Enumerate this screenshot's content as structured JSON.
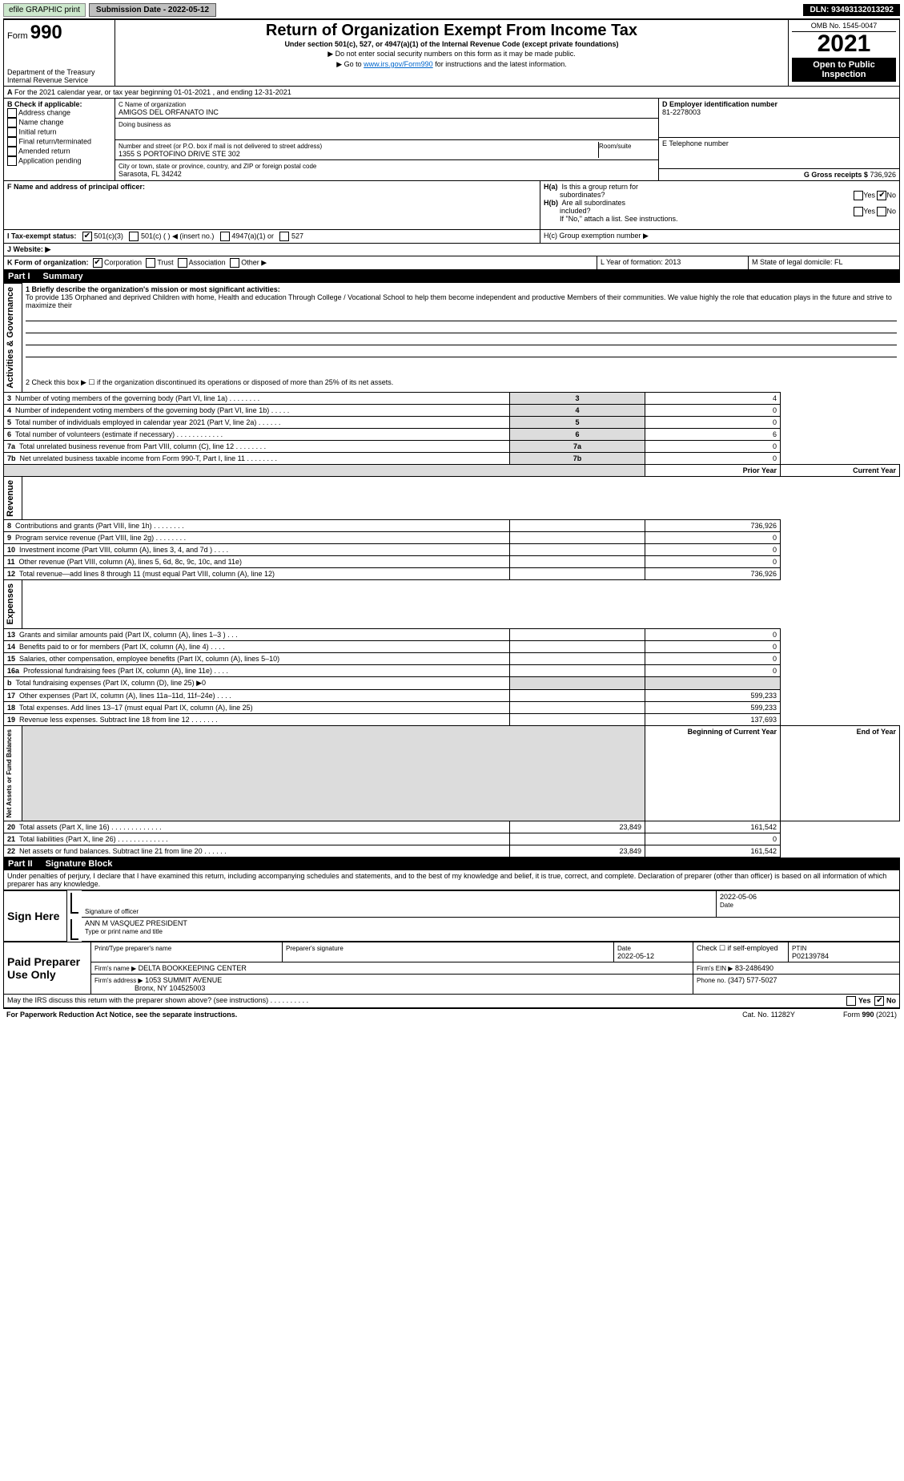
{
  "topbar": {
    "efile": "efile GRAPHIC print",
    "subdate_lbl": "Submission Date - 2022-05-12",
    "dln": "DLN: 93493132013292"
  },
  "header": {
    "form": "990",
    "title": "Return of Organization Exempt From Income Tax",
    "sub": "Under section 501(c), 527, or 4947(a)(1) of the Internal Revenue Code (except private foundations)",
    "note1": "▶ Do not enter social security numbers on this form as it may be made public.",
    "note2_pre": "▶ Go to ",
    "note2_link": "www.irs.gov/Form990",
    "note2_post": " for instructions and the latest information.",
    "dept": "Department of the Treasury",
    "irs": "Internal Revenue Service",
    "omb": "OMB No. 1545-0047",
    "year": "2021",
    "inspect": "Open to Public Inspection"
  },
  "A": {
    "txt": "For the 2021 calendar year, or tax year beginning 01-01-2021    , and ending 12-31-2021"
  },
  "B": {
    "lbl": "B Check if applicable:",
    "items": [
      "Address change",
      "Name change",
      "Initial return",
      "Final return/terminated",
      "Amended return",
      "Application pending"
    ]
  },
  "C": {
    "lbl": "C Name of organization",
    "name": "AMIGOS DEL ORFANATO INC",
    "dba_lbl": "Doing business as",
    "addr_lbl": "Number and street (or P.O. box if mail is not delivered to street address)",
    "room_lbl": "Room/suite",
    "addr": "1355 S PORTOFINO DRIVE STE 302",
    "city_lbl": "City or town, state or province, country, and ZIP or foreign postal code",
    "city": "Sarasota, FL  34242"
  },
  "D": {
    "lbl": "D Employer identification number",
    "val": "81-2278003"
  },
  "E": {
    "lbl": "E Telephone number"
  },
  "G": {
    "lbl": "G Gross receipts $",
    "val": "736,926"
  },
  "F": {
    "lbl": "F  Name and address of principal officer:"
  },
  "H": {
    "a": "H(a)  Is this a group return for subordinates?",
    "b": "H(b)  Are all subordinates included?",
    "bnote": "If \"No,\" attach a list. See instructions.",
    "c": "H(c)  Group exemption number ▶",
    "yes": "Yes",
    "no": "No"
  },
  "I": {
    "lbl": "I    Tax-exempt status:",
    "opts": [
      "501(c)(3)",
      "501(c) (  ) ◀ (insert no.)",
      "4947(a)(1) or",
      "527"
    ]
  },
  "J": {
    "lbl": "J    Website: ▶"
  },
  "K": {
    "lbl": "K Form of organization:",
    "opts": [
      "Corporation",
      "Trust",
      "Association",
      "Other ▶"
    ]
  },
  "L": {
    "lbl": "L Year of formation: 2013"
  },
  "M": {
    "lbl": "M State of legal domicile: FL"
  },
  "part1": {
    "hdr": "Part I",
    "title": "Summary",
    "l1": "1  Briefly describe the organization's mission or most significant activities:",
    "mission": "To provide 135 Orphaned and deprived Children with home, Health and education Through College / Vocational School to help them become independent and productive Members of their communities. We value highly the role that education plays in the future and strive to maximize their",
    "l2": "2   Check this box ▶ ☐  if the organization discontinued its operations or disposed of more than 25% of its net assets.",
    "rows_ag": [
      {
        "n": "3",
        "t": "Number of voting members of the governing body (Part VI, line 1a)   .    .    .    .    .    .    .    .",
        "v": "4"
      },
      {
        "n": "4",
        "t": "Number of independent voting members of the governing body (Part VI, line 1b)   .    .    .    .    .",
        "v": "0"
      },
      {
        "n": "5",
        "t": "Total number of individuals employed in calendar year 2021 (Part V, line 2a)   .    .    .    .    .    .",
        "v": "0"
      },
      {
        "n": "6",
        "t": "Total number of volunteers (estimate if necessary)    .    .    .    .    .    .    .    .    .    .    .    .",
        "v": "6"
      },
      {
        "n": "7a",
        "t": "Total unrelated business revenue from Part VIII, column (C), line 12   .    .    .    .    .    .    .    .",
        "v": "0"
      },
      {
        "n": "7b",
        "t": "Net unrelated business taxable income from Form 990-T, Part I, line 11   .    .    .    .    .    .    .    .",
        "v": "0"
      }
    ],
    "prior_hdr": "Prior Year",
    "cur_hdr": "Current Year",
    "rows_rev": [
      {
        "n": "8",
        "t": "Contributions and grants (Part VIII, line 1h)   .    .    .    .    .    .    .    .",
        "p": "",
        "c": "736,926"
      },
      {
        "n": "9",
        "t": "Program service revenue (Part VIII, line 2g)   .    .    .    .    .    .    .    .",
        "p": "",
        "c": "0"
      },
      {
        "n": "10",
        "t": "Investment income (Part VIII, column (A), lines 3, 4, and 7d )   .    .    .    .",
        "p": "",
        "c": "0"
      },
      {
        "n": "11",
        "t": "Other revenue (Part VIII, column (A), lines 5, 6d, 8c, 9c, 10c, and 11e)",
        "p": "",
        "c": "0"
      },
      {
        "n": "12",
        "t": "Total revenue—add lines 8 through 11 (must equal Part VIII, column (A), line 12)",
        "p": "",
        "c": "736,926"
      }
    ],
    "rows_exp": [
      {
        "n": "13",
        "t": "Grants and similar amounts paid (Part IX, column (A), lines 1–3 )   .    .    .",
        "p": "",
        "c": "0"
      },
      {
        "n": "14",
        "t": "Benefits paid to or for members (Part IX, column (A), line 4)   .    .    .    .",
        "p": "",
        "c": "0"
      },
      {
        "n": "15",
        "t": "Salaries, other compensation, employee benefits (Part IX, column (A), lines 5–10)",
        "p": "",
        "c": "0"
      },
      {
        "n": "16a",
        "t": "Professional fundraising fees (Part IX, column (A), line 11e)   .    .    .    .",
        "p": "",
        "c": "0"
      },
      {
        "n": "b",
        "t": "Total fundraising expenses (Part IX, column (D), line 25) ▶0",
        "p": "—",
        "c": "—"
      },
      {
        "n": "17",
        "t": "Other expenses (Part IX, column (A), lines 11a–11d, 11f–24e)   .    .    .    .",
        "p": "",
        "c": "599,233"
      },
      {
        "n": "18",
        "t": "Total expenses. Add lines 13–17 (must equal Part IX, column (A), line 25)",
        "p": "",
        "c": "599,233"
      },
      {
        "n": "19",
        "t": "Revenue less expenses. Subtract line 18 from line 12   .    .    .    .    .    .    .",
        "p": "",
        "c": "137,693"
      }
    ],
    "beg_hdr": "Beginning of Current Year",
    "end_hdr": "End of Year",
    "rows_na": [
      {
        "n": "20",
        "t": "Total assets (Part X, line 16)   .    .    .    .    .    .    .    .    .    .    .    .    .",
        "p": "23,849",
        "c": "161,542"
      },
      {
        "n": "21",
        "t": "Total liabilities (Part X, line 26)   .    .    .    .    .    .    .    .    .    .    .    .    .",
        "p": "",
        "c": "0"
      },
      {
        "n": "22",
        "t": "Net assets or fund balances. Subtract line 21 from line 20   .    .    .    .    .    .",
        "p": "23,849",
        "c": "161,542"
      }
    ],
    "sec_labels": {
      "ag": "Activities & Governance",
      "rev": "Revenue",
      "exp": "Expenses",
      "na": "Net Assets or Fund Balances"
    }
  },
  "part2": {
    "hdr": "Part II",
    "title": "Signature Block",
    "decl": "Under penalties of perjury, I declare that I have examined this return, including accompanying schedules and statements, and to the best of my knowledge and belief, it is true, correct, and complete. Declaration of preparer (other than officer) is based on all information of which preparer has any knowledge.",
    "sign_here": "Sign Here",
    "sig_officer": "Signature of officer",
    "date_lbl": "Date",
    "sig_date": "2022-05-06",
    "name_title": "ANN M VASQUEZ  PRESIDENT",
    "type_lbl": "Type or print name and title",
    "paid": "Paid Preparer Use Only",
    "pp_name_lbl": "Print/Type preparer's name",
    "pp_sig_lbl": "Preparer's signature",
    "pp_date_lbl": "Date",
    "pp_date": "2022-05-12",
    "pp_check": "Check ☐ if self-employed",
    "ptin_lbl": "PTIN",
    "ptin": "P02139784",
    "firm_name_lbl": "Firm's name   ▶",
    "firm_name": "DELTA BOOKKEEPING CENTER",
    "firm_ein_lbl": "Firm's EIN ▶",
    "firm_ein": "83-2486490",
    "firm_addr_lbl": "Firm's address ▶",
    "firm_addr1": "1053 SUMMIT AVENUE",
    "firm_addr2": "Bronx, NY  104525003",
    "phone_lbl": "Phone no.",
    "phone": "(347) 577-5027",
    "discuss": "May the IRS discuss this return with the preparer shown above? (see instructions)   .    .    .    .    .    .    .    .    .    .",
    "yes": "Yes",
    "no": "No"
  },
  "footer": {
    "pra": "For Paperwork Reduction Act Notice, see the separate instructions.",
    "cat": "Cat. No. 11282Y",
    "form": "Form 990 (2021)"
  }
}
